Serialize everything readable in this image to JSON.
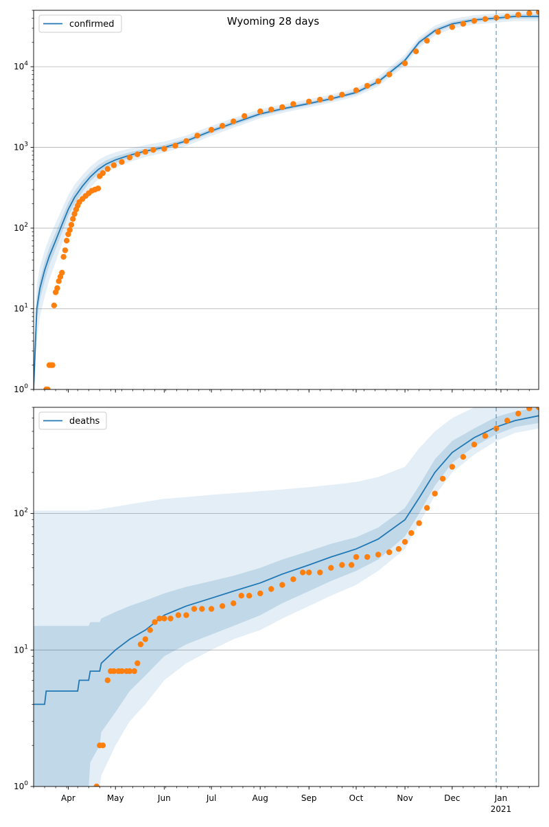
{
  "figure": {
    "title": "Wyoming 28 days"
  },
  "colors": {
    "model_line": "#1f77b4",
    "observed": "#ff7f0e",
    "band": "#1f77b4",
    "grid": "#b0b0b0",
    "vline": "#1f77b4"
  },
  "x_axis": {
    "month_labels": [
      "Apr",
      "May",
      "Jun",
      "Jul",
      "Aug",
      "Sep",
      "Oct",
      "Nov",
      "Dec",
      "Jan"
    ],
    "year_label": "2021"
  },
  "chart_data": [
    {
      "type": "line",
      "name": "confirmed",
      "legend": "confirmed",
      "legend_position": "top-left",
      "y_scale": "log",
      "ylim": [
        1,
        50000
      ],
      "xlim": [
        "2020-03-10",
        "2021-01-25"
      ],
      "forecast_start": "2020-12-29",
      "grid": "y-major",
      "ytick_exponents": [
        "0",
        "1",
        "2",
        "3",
        "4"
      ],
      "model": {
        "x": [
          "2020-03-10",
          "2020-03-12",
          "2020-03-14",
          "2020-03-17",
          "2020-03-20",
          "2020-03-24",
          "2020-03-28",
          "2020-04-01",
          "2020-04-05",
          "2020-04-10",
          "2020-04-15",
          "2020-04-20",
          "2020-04-25",
          "2020-05-01",
          "2020-05-10",
          "2020-05-20",
          "2020-06-01",
          "2020-06-15",
          "2020-07-01",
          "2020-07-15",
          "2020-08-01",
          "2020-08-15",
          "2020-09-01",
          "2020-09-15",
          "2020-10-01",
          "2020-10-15",
          "2020-11-01",
          "2020-11-10",
          "2020-11-20",
          "2020-12-01",
          "2020-12-15",
          "2020-12-29",
          "2021-01-10",
          "2021-01-25"
        ],
        "y": [
          1,
          10,
          18,
          30,
          45,
          70,
          110,
          170,
          240,
          330,
          430,
          530,
          620,
          700,
          800,
          900,
          1000,
          1200,
          1600,
          2000,
          2600,
          3000,
          3500,
          4000,
          4800,
          6500,
          12000,
          20000,
          28000,
          34000,
          38000,
          40000,
          42000,
          42000
        ]
      },
      "band_inner": {
        "lower": [
          1,
          7,
          13,
          22,
          35,
          55,
          88,
          140,
          200,
          280,
          380,
          470,
          560,
          640,
          740,
          840,
          940,
          1130,
          1500,
          1880,
          2450,
          2850,
          3330,
          3800,
          4550,
          6100,
          11200,
          18700,
          26300,
          32000,
          36000,
          37800,
          39500,
          39500
        ],
        "upper": [
          2,
          13,
          23,
          38,
          57,
          88,
          135,
          205,
          285,
          385,
          490,
          600,
          690,
          770,
          870,
          965,
          1070,
          1280,
          1700,
          2130,
          2760,
          3160,
          3680,
          4220,
          5070,
          6930,
          12900,
          21400,
          29800,
          36100,
          40300,
          42400,
          44600,
          44600
        ]
      },
      "band_outer": {
        "lower": [
          1,
          4,
          8,
          14,
          23,
          38,
          64,
          105,
          155,
          225,
          315,
          400,
          485,
          560,
          660,
          760,
          860,
          1040,
          1390,
          1750,
          2290,
          2670,
          3130,
          3580,
          4280,
          5700,
          10300,
          17200,
          24300,
          29600,
          33400,
          35200,
          36800,
          36800
        ],
        "upper": [
          3,
          20,
          33,
          52,
          76,
          115,
          172,
          255,
          345,
          455,
          575,
          695,
          790,
          870,
          970,
          1070,
          1180,
          1400,
          1850,
          2310,
          2980,
          3400,
          3950,
          4520,
          5450,
          7500,
          14000,
          23200,
          32300,
          39000,
          43500,
          45800,
          48000,
          48000
        ]
      },
      "observed": {
        "x": [
          "2020-03-18",
          "2020-03-19",
          "2020-03-20",
          "2020-03-21",
          "2020-03-22",
          "2020-03-23",
          "2020-03-24",
          "2020-03-25",
          "2020-03-26",
          "2020-03-27",
          "2020-03-28",
          "2020-03-29",
          "2020-03-30",
          "2020-03-31",
          "2020-04-01",
          "2020-04-02",
          "2020-04-03",
          "2020-04-04",
          "2020-04-05",
          "2020-04-06",
          "2020-04-07",
          "2020-04-08",
          "2020-04-10",
          "2020-04-12",
          "2020-04-14",
          "2020-04-16",
          "2020-04-18",
          "2020-04-20",
          "2020-04-21",
          "2020-04-23",
          "2020-04-26",
          "2020-04-30",
          "2020-05-05",
          "2020-05-10",
          "2020-05-15",
          "2020-05-20",
          "2020-05-25",
          "2020-06-01",
          "2020-06-08",
          "2020-06-15",
          "2020-06-22",
          "2020-07-01",
          "2020-07-08",
          "2020-07-15",
          "2020-07-22",
          "2020-08-01",
          "2020-08-08",
          "2020-08-15",
          "2020-08-22",
          "2020-09-01",
          "2020-09-08",
          "2020-09-15",
          "2020-09-22",
          "2020-10-01",
          "2020-10-08",
          "2020-10-15",
          "2020-10-22",
          "2020-11-01",
          "2020-11-08",
          "2020-11-15",
          "2020-11-22",
          "2020-12-01",
          "2020-12-08",
          "2020-12-15",
          "2020-12-22",
          "2020-12-29",
          "2021-01-05",
          "2021-01-12",
          "2021-01-19",
          "2021-01-25"
        ],
        "y": [
          1,
          1,
          2,
          2,
          2,
          11,
          16,
          18,
          22,
          25,
          28,
          44,
          53,
          70,
          84,
          95,
          110,
          130,
          150,
          170,
          190,
          210,
          230,
          250,
          270,
          290,
          300,
          310,
          440,
          480,
          540,
          600,
          660,
          750,
          820,
          880,
          930,
          960,
          1050,
          1200,
          1400,
          1650,
          1850,
          2100,
          2450,
          2800,
          2950,
          3150,
          3450,
          3700,
          3900,
          4100,
          4500,
          5100,
          5800,
          6600,
          8000,
          11000,
          15500,
          21000,
          27000,
          31000,
          34000,
          37000,
          39000,
          40500,
          42000,
          44000,
          46000,
          47500
        ]
      }
    },
    {
      "type": "line",
      "name": "deaths",
      "legend": "deaths",
      "legend_position": "top-left",
      "y_scale": "log",
      "ylim": [
        1,
        600
      ],
      "xlim": [
        "2020-03-10",
        "2021-01-25"
      ],
      "forecast_start": "2020-12-29",
      "grid": "y-major",
      "ytick_exponents": [
        "0",
        "1",
        "2"
      ],
      "model": {
        "x": [
          "2020-03-10",
          "2020-03-17",
          "2020-03-18",
          "2020-04-07",
          "2020-04-08",
          "2020-04-14",
          "2020-04-15",
          "2020-04-21",
          "2020-04-22",
          "2020-05-01",
          "2020-05-10",
          "2020-05-20",
          "2020-06-01",
          "2020-06-15",
          "2020-07-01",
          "2020-07-15",
          "2020-08-01",
          "2020-08-15",
          "2020-09-01",
          "2020-09-15",
          "2020-10-01",
          "2020-10-15",
          "2020-11-01",
          "2020-11-10",
          "2020-11-20",
          "2020-12-01",
          "2020-12-15",
          "2020-12-29",
          "2021-01-10",
          "2021-01-25"
        ],
        "y": [
          4,
          4,
          5,
          5,
          6,
          6,
          7,
          7,
          8,
          10,
          12,
          14,
          18,
          21,
          24,
          27,
          31,
          36,
          42,
          48,
          55,
          65,
          90,
          130,
          200,
          280,
          360,
          430,
          480,
          520
        ]
      },
      "band_inner": {
        "lower": [
          1,
          1,
          1,
          1,
          1,
          1,
          1.5,
          2,
          2.5,
          3.5,
          5,
          6.5,
          9,
          11,
          13,
          15,
          18,
          22,
          27,
          32,
          38,
          46,
          68,
          100,
          160,
          235,
          310,
          380,
          430,
          460
        ],
        "upper": [
          15,
          15,
          15,
          15,
          15,
          15,
          16,
          16,
          17,
          19,
          21,
          23,
          26,
          29,
          32,
          35,
          40,
          46,
          53,
          60,
          67,
          79,
          110,
          160,
          250,
          340,
          420,
          510,
          560,
          600
        ]
      },
      "band_outer": {
        "lower": [
          1,
          1,
          1,
          1,
          1,
          1,
          1,
          1,
          1.2,
          2,
          3,
          4,
          6,
          8,
          10,
          12,
          14,
          17,
          21,
          25,
          30,
          38,
          55,
          85,
          135,
          200,
          270,
          340,
          390,
          420
        ],
        "upper": [
          105,
          105,
          105,
          105,
          105,
          105,
          106,
          107,
          108,
          112,
          117,
          122,
          128,
          132,
          137,
          141,
          146,
          150,
          156,
          162,
          170,
          185,
          220,
          300,
          400,
          500,
          600,
          600,
          600,
          600
        ]
      },
      "observed": {
        "x": [
          "2020-04-19",
          "2020-04-21",
          "2020-04-23",
          "2020-04-26",
          "2020-04-28",
          "2020-04-30",
          "2020-05-03",
          "2020-05-05",
          "2020-05-08",
          "2020-05-10",
          "2020-05-13",
          "2020-05-15",
          "2020-05-17",
          "2020-05-20",
          "2020-05-23",
          "2020-05-26",
          "2020-05-29",
          "2020-06-01",
          "2020-06-05",
          "2020-06-10",
          "2020-06-15",
          "2020-06-20",
          "2020-06-25",
          "2020-07-01",
          "2020-07-08",
          "2020-07-15",
          "2020-07-20",
          "2020-07-25",
          "2020-08-01",
          "2020-08-08",
          "2020-08-15",
          "2020-08-22",
          "2020-08-28",
          "2020-09-01",
          "2020-09-08",
          "2020-09-15",
          "2020-09-22",
          "2020-09-28",
          "2020-10-01",
          "2020-10-08",
          "2020-10-15",
          "2020-10-22",
          "2020-10-28",
          "2020-11-01",
          "2020-11-05",
          "2020-11-10",
          "2020-11-15",
          "2020-11-20",
          "2020-11-25",
          "2020-12-01",
          "2020-12-08",
          "2020-12-15",
          "2020-12-22",
          "2020-12-29",
          "2021-01-05",
          "2021-01-12",
          "2021-01-19",
          "2021-01-25"
        ],
        "y": [
          1,
          2,
          2,
          6,
          7,
          7,
          7,
          7,
          7,
          7,
          7,
          8,
          11,
          12,
          14,
          16,
          17,
          17,
          17,
          18,
          18,
          20,
          20,
          20,
          21,
          22,
          25,
          25,
          26,
          28,
          30,
          33,
          37,
          37,
          37,
          40,
          42,
          42,
          48,
          48,
          50,
          52,
          55,
          62,
          72,
          85,
          110,
          140,
          180,
          220,
          260,
          320,
          370,
          420,
          480,
          540,
          590,
          600
        ]
      }
    }
  ]
}
